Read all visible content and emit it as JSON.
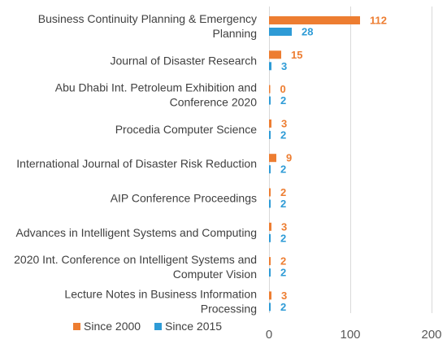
{
  "chart_data": {
    "type": "bar",
    "orientation": "horizontal",
    "categories": [
      [
        "Business Continuity Planning & Emergency",
        "Planning"
      ],
      [
        "Journal of Disaster Research"
      ],
      [
        "Abu Dhabi Int. Petroleum Exhibition and",
        "Conference 2020"
      ],
      [
        "Procedia Computer Science"
      ],
      [
        "International Journal of Disaster Risk Reduction"
      ],
      [
        "AIP Conference Proceedings"
      ],
      [
        "Advances in Intelligent Systems and Computing"
      ],
      [
        "2020 Int. Conference on Intelligent Systems and",
        "Computer Vision"
      ],
      [
        "Lecture Notes in Business Information",
        "Processing"
      ]
    ],
    "series": [
      {
        "name": "Since 2000",
        "color": "#ED7D31",
        "values": [
          112,
          15,
          0,
          3,
          9,
          2,
          3,
          2,
          3
        ]
      },
      {
        "name": "Since 2015",
        "color": "#2E9BD6",
        "values": [
          28,
          3,
          2,
          2,
          2,
          2,
          2,
          2,
          2
        ]
      }
    ],
    "xlim": [
      0,
      200
    ],
    "xticks": [
      "0",
      "100",
      "200"
    ],
    "grid": "vertical",
    "legend": "bottom-left",
    "title": "",
    "xlabel": "",
    "ylabel": ""
  }
}
